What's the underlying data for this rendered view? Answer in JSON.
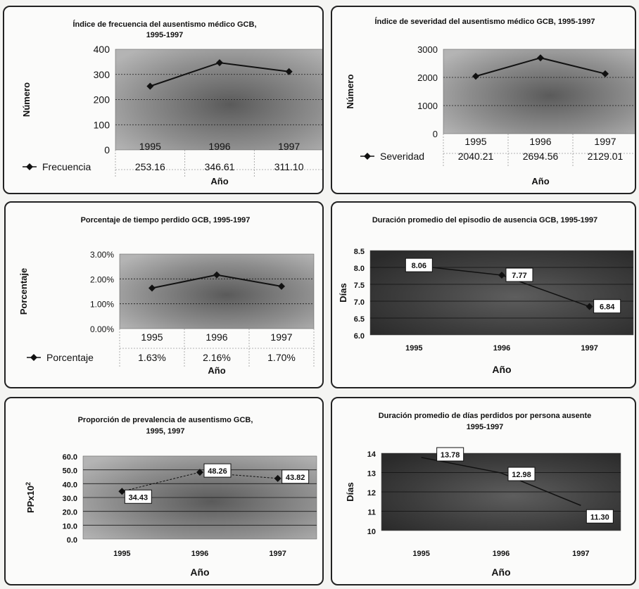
{
  "chart_data": [
    {
      "type": "line",
      "title": "Índice de frecuencia del ausentismo médico GCB,",
      "subtitle": "1995-1997",
      "xlabel": "Año",
      "ylabel": "Número",
      "categories": [
        "1995",
        "1996",
        "1997"
      ],
      "series": [
        {
          "name": "Frecuencia",
          "values": [
            253.16,
            346.61,
            311.1
          ],
          "labels": [
            "253.16",
            "346.61",
            "311.10"
          ]
        }
      ],
      "ylim": [
        0,
        400
      ],
      "yticks": [
        "0",
        "100",
        "200",
        "300",
        "400"
      ],
      "data_table": true,
      "grid": true
    },
    {
      "type": "line",
      "title": "Índice de severidad del ausentismo médico GCB, 1995-1997",
      "xlabel": "Año",
      "ylabel": "Número",
      "categories": [
        "1995",
        "1996",
        "1997"
      ],
      "series": [
        {
          "name": "Severidad",
          "values": [
            2040.21,
            2694.56,
            2129.01
          ],
          "labels": [
            "2040.21",
            "2694.56",
            "2129.01"
          ]
        }
      ],
      "ylim": [
        0,
        3000
      ],
      "yticks": [
        "0",
        "1000",
        "2000",
        "3000"
      ],
      "data_table": true,
      "grid": true
    },
    {
      "type": "line",
      "title": "Porcentaje de tiempo perdido GCB, 1995-1997",
      "xlabel": "Año",
      "ylabel": "Porcentaje",
      "categories": [
        "1995",
        "1996",
        "1997"
      ],
      "series": [
        {
          "name": "Porcentaje",
          "values": [
            1.63,
            2.16,
            1.7
          ],
          "labels": [
            "1.63%",
            "2.16%",
            "1.70%"
          ]
        }
      ],
      "ylim": [
        0,
        3
      ],
      "yticks": [
        "0.00%",
        "1.00%",
        "2.00%",
        "3.00%"
      ],
      "data_table": true,
      "grid": true
    },
    {
      "type": "line",
      "title": "Duración promedio del episodio de ausencia GCB, 1995-1997",
      "xlabel": "Año",
      "ylabel": "Días",
      "categories": [
        "1995",
        "1996",
        "1997"
      ],
      "series": [
        {
          "values": [
            8.06,
            7.77,
            6.84
          ],
          "labels": [
            "8.06",
            "7.77",
            "6.84"
          ]
        }
      ],
      "ylim": [
        6.0,
        8.5
      ],
      "yticks": [
        "6.0",
        "6.5",
        "7.0",
        "7.5",
        "8.0",
        "8.5"
      ],
      "data_labels": true,
      "grid": true
    },
    {
      "type": "line",
      "title": "Proporción de prevalencia de ausentismo GCB,",
      "subtitle": "1995, 1997",
      "xlabel": "Año",
      "ylabel": "PPx10",
      "ylabel_superscript": "2",
      "categories": [
        "1995",
        "1996",
        "1997"
      ],
      "series": [
        {
          "values": [
            34.43,
            48.26,
            43.82
          ],
          "labels": [
            "34.43",
            "48.26",
            "43.82"
          ]
        }
      ],
      "ylim": [
        0,
        60
      ],
      "yticks": [
        "0.0",
        "10.0",
        "20.0",
        "30.0",
        "40.0",
        "50.0",
        "60.0"
      ],
      "data_labels": true,
      "grid": true
    },
    {
      "type": "line",
      "title": "Duración promedio de días perdidos por persona ausente",
      "subtitle": "1995-1997",
      "xlabel": "Año",
      "ylabel": "Días",
      "categories": [
        "1995",
        "1996",
        "1997"
      ],
      "series": [
        {
          "values": [
            13.78,
            12.98,
            11.3
          ],
          "labels": [
            "13.78",
            "12.98",
            "11.30"
          ]
        }
      ],
      "ylim": [
        10,
        14
      ],
      "yticks": [
        "10",
        "11",
        "12",
        "13",
        "14"
      ],
      "data_labels": true,
      "grid": true
    }
  ],
  "colors": {
    "plot_fill_light": "#9d9d9d",
    "plot_fill_dark": "#3b3b3b",
    "line": "#111111",
    "grid": "#1a1a1a"
  }
}
